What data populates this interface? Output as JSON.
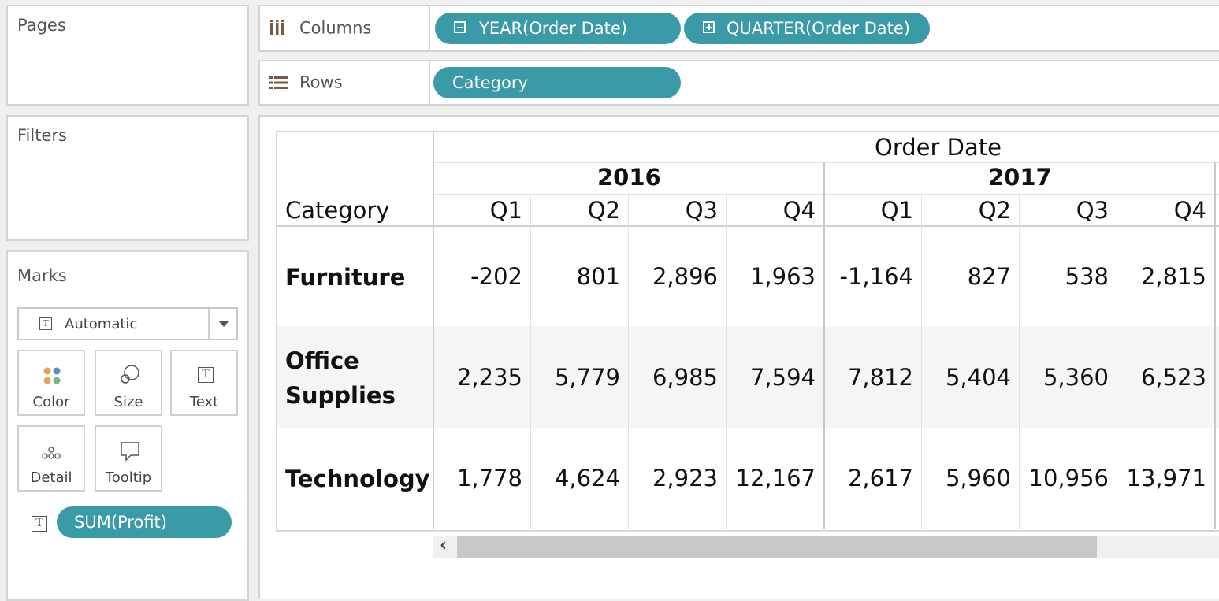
{
  "panels": {
    "pages": "Pages",
    "filters": "Filters",
    "marks": "Marks"
  },
  "shelves": {
    "columns": {
      "label": "Columns",
      "pills": [
        "YEAR(Order Date)",
        "QUARTER(Order Date)"
      ]
    },
    "rows": {
      "label": "Rows",
      "pills": [
        "Category"
      ]
    }
  },
  "marks": {
    "type": "Automatic",
    "buttons": {
      "color": "Color",
      "size": "Size",
      "text": "Text",
      "detail": "Detail",
      "tooltip": "Tooltip"
    },
    "field": "SUM(Profit)"
  },
  "table": {
    "row_header": "Category",
    "column_header": "Order Date",
    "years": [
      "2016",
      "2017"
    ],
    "quarters": [
      "Q1",
      "Q2",
      "Q3",
      "Q4",
      "Q1",
      "Q2",
      "Q3",
      "Q4"
    ],
    "rows": [
      {
        "label_lines": [
          "Furniture"
        ],
        "values": [
          "-202",
          "801",
          "2,896",
          "1,963",
          "-1,164",
          "827",
          "538",
          "2,815"
        ]
      },
      {
        "label_lines": [
          "Office",
          "Supplies"
        ],
        "values": [
          "2,235",
          "5,779",
          "6,985",
          "7,594",
          "7,812",
          "5,404",
          "5,360",
          "6,523"
        ]
      },
      {
        "label_lines": [
          "Technology"
        ],
        "values": [
          "1,778",
          "4,624",
          "2,923",
          "12,167",
          "2,617",
          "5,960",
          "10,956",
          "13,971"
        ]
      }
    ]
  },
  "scrollbar": {
    "left_arrow": "‹"
  },
  "colors": {
    "pill": "#3a9aa8",
    "row_band": "#f5f5f5"
  }
}
